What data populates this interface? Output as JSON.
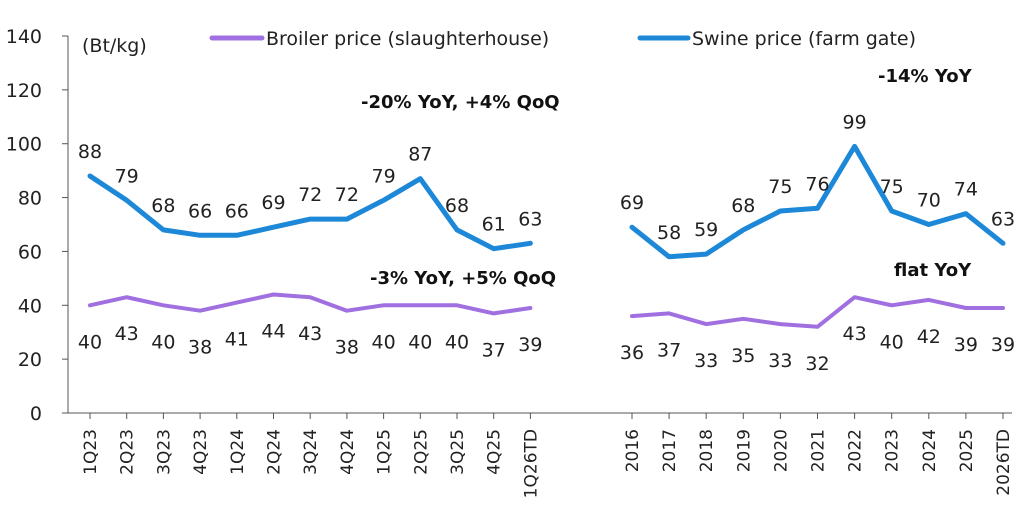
{
  "chart_data": {
    "type": "line",
    "ylabel": "(Bt/kg)",
    "ylim": [
      0,
      140
    ],
    "yticks": [
      0,
      20,
      40,
      60,
      80,
      100,
      120,
      140
    ],
    "grid": false,
    "legend_position": "top",
    "colors": {
      "broiler": "#a070e0",
      "swine": "#1e88d8"
    },
    "legend": [
      {
        "key": "broiler",
        "label": "Broiler price (slaughterhouse)"
      },
      {
        "key": "swine",
        "label": "Swine price (farm gate)"
      }
    ],
    "panels": [
      {
        "categories": [
          "1Q23",
          "2Q23",
          "3Q23",
          "4Q23",
          "1Q24",
          "2Q24",
          "3Q24",
          "4Q24",
          "1Q25",
          "2Q25",
          "3Q25",
          "4Q25",
          "1Q26TD"
        ],
        "series": [
          {
            "key": "swine",
            "name": "Swine price (farm gate)",
            "values": [
              88,
              79,
              68,
              66,
              66,
              69,
              72,
              72,
              79,
              87,
              68,
              61,
              63
            ]
          },
          {
            "key": "broiler",
            "name": "Broiler price (slaughterhouse)",
            "values": [
              40,
              43,
              40,
              38,
              41,
              44,
              43,
              38,
              40,
              40,
              40,
              37,
              39
            ]
          }
        ],
        "annotations": [
          "-20% YoY, +4% QoQ",
          "-3% YoY, +5% QoQ"
        ]
      },
      {
        "categories": [
          "2016",
          "2017",
          "2018",
          "2019",
          "2020",
          "2021",
          "2022",
          "2023",
          "2024",
          "2025",
          "2026TD"
        ],
        "series": [
          {
            "key": "swine",
            "name": "Swine price (farm gate)",
            "values": [
              69,
              58,
              59,
              68,
              75,
              76,
              99,
              75,
              70,
              74,
              63
            ]
          },
          {
            "key": "broiler",
            "name": "Broiler price (slaughterhouse)",
            "values": [
              36,
              37,
              33,
              35,
              33,
              32,
              43,
              40,
              42,
              39,
              39
            ]
          }
        ],
        "annotations": [
          "-14% YoY",
          "flat YoY"
        ]
      }
    ]
  }
}
